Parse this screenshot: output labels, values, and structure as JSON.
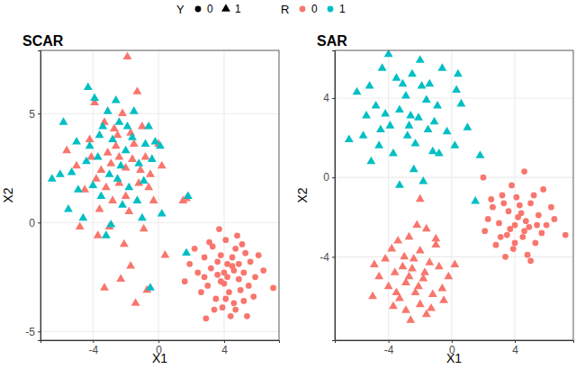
{
  "chart_data": {
    "type": "scatter",
    "legend": "top",
    "legend_groups": [
      {
        "title": "Y",
        "entries": [
          {
            "label": "0",
            "marker": "circle"
          },
          {
            "label": "1",
            "marker": "triangle"
          }
        ]
      },
      {
        "title": "R",
        "entries": [
          {
            "label": "0",
            "color": "#F8766D"
          },
          {
            "label": "1",
            "color": "#00BFC4"
          }
        ]
      }
    ],
    "panels": [
      {
        "title": "SCAR",
        "x_label": "X1",
        "y_label": "X2",
        "xlim": [
          -7.2,
          7.35
        ],
        "ylim": [
          -5.4,
          7.9
        ],
        "xticks": [
          -4,
          0,
          4
        ],
        "yticks": [
          -5,
          0,
          5
        ],
        "grid": true,
        "series": [
          {
            "marker": "circle",
            "color": "#F8766D",
            "x": [
              4.5,
              3.8,
              5.2,
              4.0,
              4.7,
              3.2,
              5.6,
              4.3,
              3.5,
              4.9,
              2.8,
              5.9,
              4.1,
              3.6,
              4.6,
              5.3,
              3.0,
              4.2,
              6.4,
              2.4,
              4.8,
              3.9,
              5.0,
              3.3,
              4.4,
              7.0,
              2.6,
              5.5,
              3.7,
              4.0,
              4.5,
              5.1,
              3.4,
              2.9,
              1.9,
              4.7,
              5.8,
              3.1,
              4.9,
              3.8,
              1.6,
              6.1,
              4.2,
              2.2,
              5.4,
              4.6,
              3.6,
              5.2,
              4.1,
              2.8
            ],
            "values": [
              -2.0,
              -1.5,
              -2.3,
              -2.8,
              -1.2,
              -2.1,
              -1.8,
              -3.2,
              -3.5,
              -2.6,
              -1.6,
              -2.5,
              -0.8,
              -2.4,
              -3.7,
              -1.4,
              -2.9,
              -1.9,
              -2.2,
              -2.3,
              -0.6,
              -3.9,
              -3.1,
              -1.1,
              -4.3,
              -3.0,
              -3.2,
              -2.9,
              -0.3,
              -2.3,
              -1.6,
              -1.0,
              -4.0,
              -4.4,
              -1.9,
              -4.0,
              -3.4,
              -0.9,
              -1.9,
              -2.7,
              -2.7,
              -1.5,
              -2.5,
              -1.2,
              -4.3,
              -2.2,
              -1.8,
              -3.6,
              -3.5,
              -2.5
            ]
          },
          {
            "marker": "triangle",
            "color": "#F8766D",
            "x": [
              -2.0,
              -3.1,
              -1.2,
              -2.5,
              -3.8,
              -1.5,
              -0.5,
              -2.8,
              -4.2,
              -1.8,
              -3.3,
              -2.2,
              -0.8,
              -4.5,
              -1.0,
              -2.9,
              -3.6,
              -2.4,
              -1.6,
              -0.3,
              -5.0,
              -1.3,
              -3.0,
              -2.6,
              -1.9,
              -3.9,
              -2.1,
              -0.9,
              -1.7,
              -2.3,
              -3.3,
              -1.4,
              -0.7,
              0.4,
              1.5,
              -4.8,
              -3.5,
              -2.7,
              -1.1,
              0.0,
              -4.1,
              -2.0,
              -3.2,
              -1.7,
              -0.6,
              -2.4,
              0.2,
              -5.6,
              1.7,
              -3.7
            ],
            "values": [
              2.5,
              3.2,
              1.8,
              4.0,
              2.0,
              3.6,
              2.2,
              1.0,
              3.8,
              0.5,
              4.6,
              5.0,
              3.0,
              1.5,
              4.4,
              2.7,
              0.6,
              1.8,
              2.9,
              1.0,
              2.6,
              6.0,
              -0.2,
              3.5,
              7.6,
              5.5,
              -1.0,
              -0.3,
              -2.0,
              -2.6,
              -3.0,
              -3.7,
              -3.1,
              -1.5,
              1.0,
              -0.2,
              2.4,
              4.3,
              2.4,
              3.6,
              3.0,
              1.2,
              1.6,
              4.1,
              1.6,
              3.0,
              2.6,
              3.3,
              1.1,
              -0.6
            ]
          },
          {
            "marker": "triangle",
            "color": "#00BFC4",
            "x": [
              -5.8,
              -6.5,
              -4.3,
              -3.9,
              -5.0,
              -4.6,
              -5.5,
              -3.4,
              -2.8,
              -1.5,
              -0.8,
              -0.2,
              -2.0,
              -3.0,
              -4.0,
              -4.4,
              -2.5,
              -1.2,
              -0.4,
              -2.2,
              -3.5,
              -1.0,
              -2.9,
              -4.2,
              -3.7,
              -1.8,
              -0.6,
              -2.4,
              -1.3,
              -3.1,
              0.2,
              1.8,
              -0.5,
              1.7,
              -5.3,
              -2.6,
              -1.6,
              -3.2,
              -4.9,
              -0.9,
              -2.3,
              -3.6,
              0.1,
              -1.9,
              -6.0
            ],
            "values": [
              4.6,
              2.0,
              6.2,
              5.7,
              3.7,
              0.2,
              0.6,
              4.4,
              3.8,
              5.1,
              3.6,
              3.7,
              3.3,
              2.2,
              1.7,
              2.8,
              2.0,
              2.7,
              2.9,
              0.8,
              1.2,
              0.2,
              -0.1,
              3.5,
              3.0,
              1.6,
              4.4,
              4.6,
              1.0,
              5.1,
              0.4,
              1.2,
              -3.0,
              -1.4,
              2.3,
              5.6,
              3.9,
              -0.6,
              1.5,
              1.9,
              2.6,
              4.0,
              3.5,
              4.4,
              2.2
            ]
          }
        ]
      },
      {
        "title": "SAR",
        "x_label": "X1",
        "y_label": "X2",
        "xlim": [
          -7.4,
          7.7
        ],
        "ylim": [
          -8.2,
          6.4
        ],
        "xticks": [
          -4,
          0,
          4
        ],
        "yticks": [
          -4,
          0,
          4
        ],
        "grid": true,
        "series": [
          {
            "marker": "circle",
            "color": "#F8766D",
            "x": [
              2.0,
              4.6,
              5.8,
              3.2,
              4.1,
              5.0,
              2.6,
              3.6,
              4.4,
              5.5,
              6.0,
              3.0,
              4.0,
              4.9,
              2.3,
              3.5,
              4.5,
              5.3,
              2.8,
              3.9,
              4.8,
              3.4,
              5.0,
              7.2,
              2.5,
              6.3,
              4.2,
              3.7,
              5.7,
              4.3,
              3.1,
              4.7,
              5.2,
              3.8,
              2.1,
              4.0,
              6.5,
              3.3,
              4.6,
              5.4
            ],
            "values": [
              0.0,
              0.3,
              -0.6,
              -0.9,
              -1.0,
              -1.3,
              -1.5,
              -1.7,
              -1.8,
              -1.9,
              -2.4,
              -2.3,
              -2.4,
              -2.5,
              -2.1,
              -2.9,
              -3.0,
              -3.3,
              -3.4,
              -3.6,
              -3.9,
              -4.0,
              -4.2,
              -2.9,
              -1.1,
              -1.5,
              -2.0,
              -2.6,
              -2.8,
              -1.4,
              -3.0,
              -2.2,
              -0.9,
              -0.4,
              -2.7,
              -3.3,
              -2.1,
              -1.3,
              -2.7,
              -2.4
            ]
          },
          {
            "marker": "triangle",
            "color": "#F8766D",
            "x": [
              -2.2,
              -1.6,
              -2.7,
              -3.4,
              -1.0,
              -2.0,
              -3.0,
              -4.2,
              -1.4,
              -2.5,
              -3.6,
              -0.8,
              -4.6,
              -1.8,
              -2.9,
              -0.2,
              -4.0,
              -2.3,
              -1.2,
              -3.3,
              -2.0,
              -2.9,
              -1.6,
              -2.6,
              -5.0,
              -0.5,
              -3.7,
              -1.0,
              -2.4,
              -3.1,
              -1.7,
              -2.1,
              -3.8,
              0.2,
              -4.9,
              -1.3,
              -2.7,
              -3.5,
              -0.6,
              -2.0
            ],
            "values": [
              -2.4,
              -2.6,
              -3.0,
              -3.2,
              -3.4,
              -3.7,
              -4.0,
              -4.1,
              -4.3,
              -4.6,
              -4.8,
              -4.5,
              -5.0,
              -5.1,
              -5.3,
              -5.0,
              -5.5,
              -5.8,
              -5.9,
              -6.1,
              -6.4,
              -6.7,
              -6.9,
              -7.2,
              -6.0,
              -6.2,
              -6.5,
              -3.1,
              -4.1,
              -4.5,
              -4.8,
              -5.5,
              -3.6,
              -4.4,
              -4.4,
              -6.6,
              -5.0,
              -5.8,
              -5.6,
              -1.1
            ]
          },
          {
            "marker": "triangle",
            "color": "#00BFC4",
            "x": [
              -4.4,
              -4.0,
              -3.5,
              -2.5,
              -1.9,
              -0.6,
              0.4,
              -5.2,
              -6.0,
              -6.5,
              -5.6,
              -5.1,
              -4.6,
              -3.9,
              -3.3,
              -2.8,
              -2.1,
              -1.5,
              -0.9,
              -0.3,
              0.3,
              1.0,
              1.8,
              1.5,
              0.2,
              -1.2,
              -2.4,
              -3.3,
              -1.8,
              -4.2,
              -2.9,
              -1.6,
              -3.7,
              -2.3,
              -0.8,
              -4.8,
              -2.6,
              -1.1,
              -3.1,
              -2.0,
              0.6,
              -5.4,
              -4.5,
              -2.7,
              -1.4
            ],
            "values": [
              5.5,
              6.2,
              5.0,
              5.2,
              4.6,
              5.5,
              5.2,
              4.6,
              4.3,
              1.9,
              2.1,
              0.8,
              1.6,
              2.6,
              3.4,
              2.1,
              3.0,
              2.4,
              3.6,
              2.3,
              4.4,
              2.5,
              1.1,
              -1.2,
              1.6,
              1.3,
              0.4,
              -0.4,
              -0.2,
              3.2,
              4.1,
              3.9,
              1.2,
              1.7,
              1.2,
              3.6,
              3.1,
              2.8,
              4.7,
              5.9,
              3.7,
              3.1,
              2.4,
              2.6,
              4.7
            ]
          }
        ]
      }
    ]
  }
}
